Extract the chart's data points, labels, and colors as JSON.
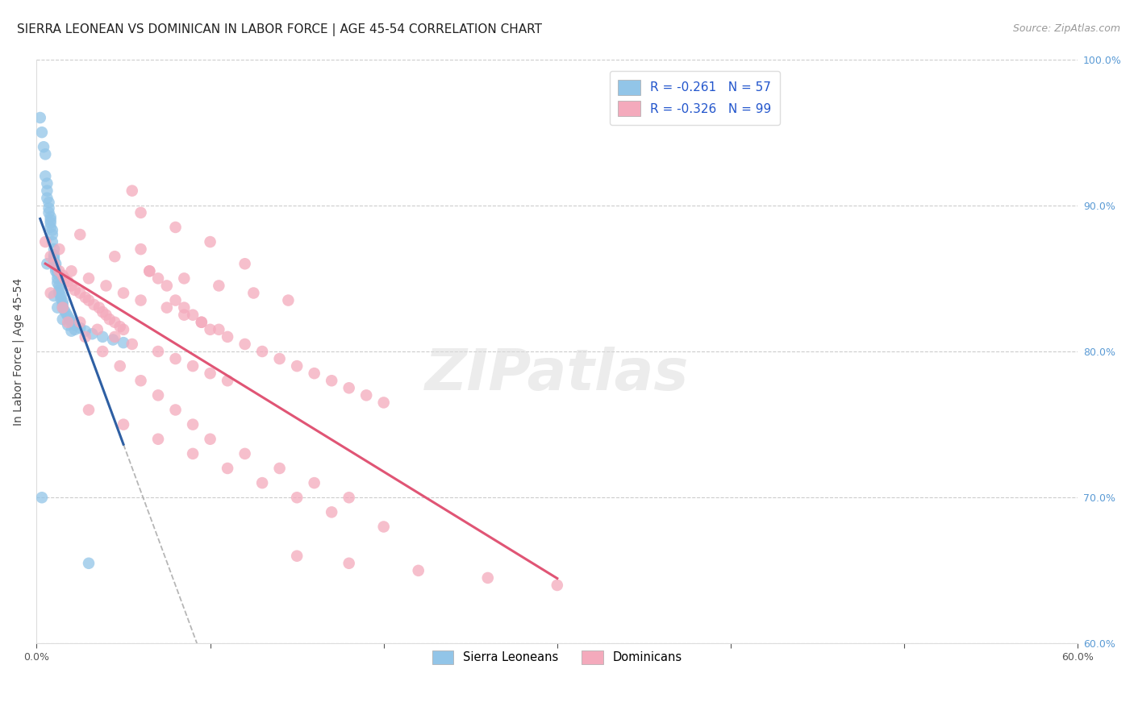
{
  "title": "SIERRA LEONEAN VS DOMINICAN IN LABOR FORCE | AGE 45-54 CORRELATION CHART",
  "source": "Source: ZipAtlas.com",
  "ylabel": "In Labor Force | Age 45-54",
  "xlim": [
    0.0,
    0.6
  ],
  "ylim": [
    0.6,
    1.0
  ],
  "xtick_vals": [
    0.0,
    0.1,
    0.2,
    0.3,
    0.4,
    0.5,
    0.6
  ],
  "ytick_vals": [
    0.6,
    0.7,
    0.8,
    0.9,
    1.0
  ],
  "blue_R": -0.261,
  "blue_N": 57,
  "pink_R": -0.326,
  "pink_N": 99,
  "blue_color": "#92C5E8",
  "pink_color": "#F4AABC",
  "blue_line_color": "#2E5FA3",
  "pink_line_color": "#E05575",
  "right_tick_color": "#5B9BD5",
  "legend_label_blue": "Sierra Leoneans",
  "legend_label_pink": "Dominicans",
  "title_fontsize": 11,
  "axis_label_fontsize": 10,
  "tick_fontsize": 9,
  "source_fontsize": 9,
  "watermark": "ZIPatlas",
  "blue_x": [
    0.002,
    0.003,
    0.004,
    0.005,
    0.005,
    0.006,
    0.006,
    0.006,
    0.007,
    0.007,
    0.007,
    0.008,
    0.008,
    0.008,
    0.008,
    0.009,
    0.009,
    0.009,
    0.01,
    0.01,
    0.01,
    0.01,
    0.011,
    0.011,
    0.011,
    0.012,
    0.012,
    0.012,
    0.013,
    0.013,
    0.013,
    0.014,
    0.014,
    0.015,
    0.015,
    0.015,
    0.016,
    0.017,
    0.018,
    0.019,
    0.02,
    0.022,
    0.025,
    0.028,
    0.032,
    0.038,
    0.044,
    0.05,
    0.006,
    0.01,
    0.012,
    0.015,
    0.018,
    0.02,
    0.003,
    0.03,
    0.022
  ],
  "blue_y": [
    0.96,
    0.95,
    0.94,
    0.935,
    0.92,
    0.915,
    0.91,
    0.905,
    0.902,
    0.898,
    0.895,
    0.892,
    0.89,
    0.888,
    0.885,
    0.883,
    0.88,
    0.875,
    0.87,
    0.866,
    0.864,
    0.862,
    0.86,
    0.857,
    0.855,
    0.853,
    0.85,
    0.847,
    0.845,
    0.842,
    0.84,
    0.838,
    0.836,
    0.834,
    0.832,
    0.83,
    0.828,
    0.826,
    0.824,
    0.822,
    0.82,
    0.818,
    0.816,
    0.814,
    0.812,
    0.81,
    0.808,
    0.806,
    0.86,
    0.838,
    0.83,
    0.822,
    0.818,
    0.814,
    0.7,
    0.655,
    0.815
  ],
  "pink_x": [
    0.005,
    0.008,
    0.01,
    0.013,
    0.015,
    0.016,
    0.018,
    0.02,
    0.022,
    0.025,
    0.028,
    0.03,
    0.033,
    0.036,
    0.038,
    0.04,
    0.042,
    0.045,
    0.048,
    0.05,
    0.055,
    0.06,
    0.065,
    0.07,
    0.075,
    0.08,
    0.085,
    0.09,
    0.095,
    0.1,
    0.11,
    0.12,
    0.13,
    0.14,
    0.15,
    0.16,
    0.17,
    0.18,
    0.19,
    0.2,
    0.015,
    0.025,
    0.035,
    0.045,
    0.055,
    0.07,
    0.08,
    0.09,
    0.1,
    0.11,
    0.013,
    0.02,
    0.03,
    0.04,
    0.05,
    0.06,
    0.075,
    0.085,
    0.095,
    0.105,
    0.008,
    0.018,
    0.028,
    0.038,
    0.048,
    0.06,
    0.07,
    0.08,
    0.09,
    0.1,
    0.12,
    0.14,
    0.16,
    0.18,
    0.03,
    0.05,
    0.07,
    0.09,
    0.11,
    0.13,
    0.15,
    0.17,
    0.2,
    0.025,
    0.045,
    0.065,
    0.085,
    0.105,
    0.125,
    0.145,
    0.06,
    0.08,
    0.1,
    0.12,
    0.15,
    0.18,
    0.22,
    0.26,
    0.3
  ],
  "pink_y": [
    0.875,
    0.865,
    0.86,
    0.855,
    0.852,
    0.85,
    0.848,
    0.845,
    0.842,
    0.84,
    0.837,
    0.835,
    0.832,
    0.83,
    0.827,
    0.825,
    0.822,
    0.82,
    0.817,
    0.815,
    0.91,
    0.87,
    0.855,
    0.85,
    0.845,
    0.835,
    0.83,
    0.825,
    0.82,
    0.815,
    0.81,
    0.805,
    0.8,
    0.795,
    0.79,
    0.785,
    0.78,
    0.775,
    0.77,
    0.765,
    0.83,
    0.82,
    0.815,
    0.81,
    0.805,
    0.8,
    0.795,
    0.79,
    0.785,
    0.78,
    0.87,
    0.855,
    0.85,
    0.845,
    0.84,
    0.835,
    0.83,
    0.825,
    0.82,
    0.815,
    0.84,
    0.82,
    0.81,
    0.8,
    0.79,
    0.78,
    0.77,
    0.76,
    0.75,
    0.74,
    0.73,
    0.72,
    0.71,
    0.7,
    0.76,
    0.75,
    0.74,
    0.73,
    0.72,
    0.71,
    0.7,
    0.69,
    0.68,
    0.88,
    0.865,
    0.855,
    0.85,
    0.845,
    0.84,
    0.835,
    0.895,
    0.885,
    0.875,
    0.86,
    0.66,
    0.655,
    0.65,
    0.645,
    0.64
  ]
}
